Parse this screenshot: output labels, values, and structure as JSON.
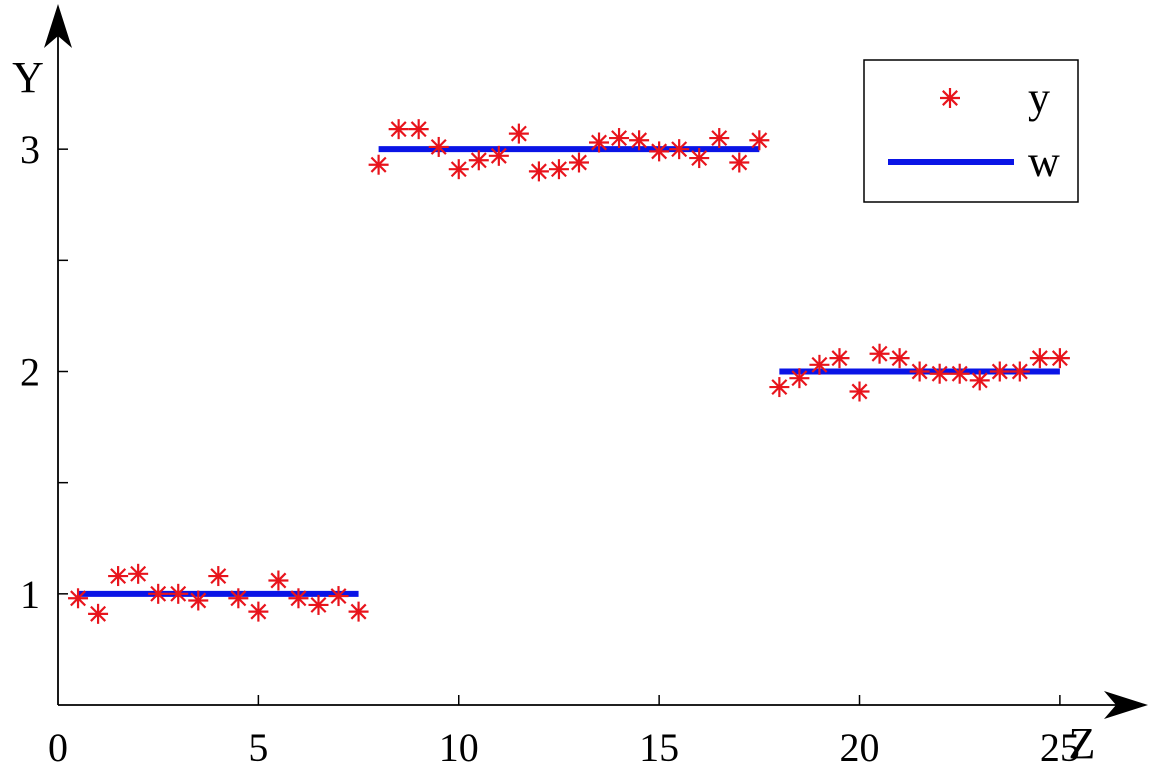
{
  "chart_data": {
    "type": "scatter",
    "xlabel": "Z",
    "ylabel": "Y",
    "xlim": [
      0,
      26.5
    ],
    "ylim": [
      0.5,
      3.5
    ],
    "x_ticks": [
      0,
      5,
      10,
      15,
      20,
      25
    ],
    "x_tick_labels": [
      "0",
      "5",
      "10",
      "15",
      "20",
      "25"
    ],
    "y_ticks": [
      1,
      2,
      3
    ],
    "y_tick_labels": [
      "1",
      "2",
      "3"
    ],
    "y_minor_ticks": [
      1.5,
      2.5
    ],
    "grid": false,
    "legend_position": "top-right",
    "series": [
      {
        "name": "y",
        "type": "scatter",
        "marker": "asterisk",
        "color": "#e8141c",
        "points": [
          [
            0.5,
            0.98
          ],
          [
            1.0,
            0.91
          ],
          [
            1.5,
            1.08
          ],
          [
            2.0,
            1.09
          ],
          [
            2.5,
            1.0
          ],
          [
            3.0,
            1.0
          ],
          [
            3.5,
            0.97
          ],
          [
            4.0,
            1.08
          ],
          [
            4.5,
            0.98
          ],
          [
            5.0,
            0.92
          ],
          [
            5.5,
            1.06
          ],
          [
            6.0,
            0.98
          ],
          [
            6.5,
            0.95
          ],
          [
            7.0,
            0.99
          ],
          [
            7.5,
            0.92
          ],
          [
            8.0,
            2.93
          ],
          [
            8.5,
            3.09
          ],
          [
            9.0,
            3.09
          ],
          [
            9.5,
            3.01
          ],
          [
            10.0,
            2.91
          ],
          [
            10.5,
            2.95
          ],
          [
            11.0,
            2.97
          ],
          [
            11.5,
            3.07
          ],
          [
            12.0,
            2.9
          ],
          [
            12.5,
            2.91
          ],
          [
            13.0,
            2.94
          ],
          [
            13.5,
            3.03
          ],
          [
            14.0,
            3.05
          ],
          [
            14.5,
            3.04
          ],
          [
            15.0,
            2.99
          ],
          [
            15.5,
            3.0
          ],
          [
            16.0,
            2.96
          ],
          [
            16.5,
            3.05
          ],
          [
            17.0,
            2.94
          ],
          [
            17.5,
            3.04
          ],
          [
            18.0,
            1.93
          ],
          [
            18.5,
            1.97
          ],
          [
            19.0,
            2.03
          ],
          [
            19.5,
            2.06
          ],
          [
            20.0,
            1.91
          ],
          [
            20.5,
            2.08
          ],
          [
            21.0,
            2.06
          ],
          [
            21.5,
            2.0
          ],
          [
            22.0,
            1.99
          ],
          [
            22.5,
            1.99
          ],
          [
            23.0,
            1.96
          ],
          [
            23.5,
            2.0
          ],
          [
            24.0,
            2.0
          ],
          [
            24.5,
            2.06
          ],
          [
            25.0,
            2.06
          ]
        ]
      },
      {
        "name": "w",
        "type": "line",
        "color": "#0a14e6",
        "segments": [
          [
            [
              0.5,
              1
            ],
            [
              7.5,
              1
            ]
          ],
          [
            [
              8.0,
              3
            ],
            [
              17.5,
              3
            ]
          ],
          [
            [
              18.0,
              2
            ],
            [
              25.0,
              2
            ]
          ]
        ]
      }
    ]
  }
}
